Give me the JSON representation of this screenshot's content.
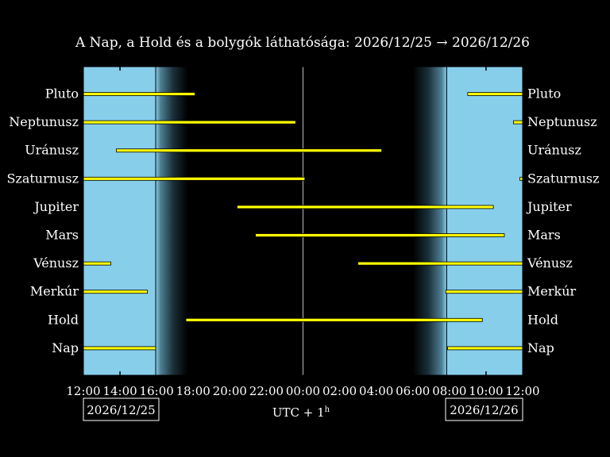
{
  "chart_data": {
    "type": "bar",
    "title": "A Nap, a Hold és a bolygók láthatósága: 2026/12/25 → 2026/12/26",
    "xlabel": "UTC + 1",
    "xlabel_sup": "h",
    "date_left": "2026/12/25",
    "date_right": "2026/12/26",
    "x_ticks": [
      "12:00",
      "14:00",
      "16:00",
      "18:00",
      "20:00",
      "22:00",
      "00:00",
      "02:00",
      "04:00",
      "06:00",
      "08:00",
      "10:00",
      "12:00"
    ],
    "x_range_hours": [
      12,
      36
    ],
    "sunset_hour": 15.95,
    "sunrise_hour": 31.85,
    "civil_dusk_end_hour": 17.7,
    "civil_dawn_start_hour": 30.0,
    "midnight_hour": 24.0,
    "bodies": [
      {
        "name": "Pluto",
        "segments": [
          [
            12.0,
            18.1
          ],
          [
            33.0,
            36.0
          ]
        ]
      },
      {
        "name": "Neptunusz",
        "segments": [
          [
            12.0,
            23.6
          ],
          [
            35.5,
            36.0
          ]
        ]
      },
      {
        "name": "Uránusz",
        "segments": [
          [
            13.8,
            28.3
          ]
        ]
      },
      {
        "name": "Szaturnusz",
        "segments": [
          [
            12.0,
            24.1
          ],
          [
            35.85,
            36.0
          ]
        ]
      },
      {
        "name": "Jupiter",
        "segments": [
          [
            20.4,
            34.4
          ]
        ]
      },
      {
        "name": "Mars",
        "segments": [
          [
            21.4,
            35.0
          ]
        ]
      },
      {
        "name": "Vénusz",
        "segments": [
          [
            12.0,
            13.5
          ],
          [
            27.0,
            36.0
          ]
        ]
      },
      {
        "name": "Merkúr",
        "segments": [
          [
            12.0,
            15.5
          ],
          [
            31.8,
            36.0
          ]
        ]
      },
      {
        "name": "Hold",
        "segments": [
          [
            17.6,
            33.8
          ]
        ]
      },
      {
        "name": "Nap",
        "segments": [
          [
            12.0,
            15.95
          ],
          [
            31.9,
            36.0
          ]
        ]
      }
    ],
    "colors": {
      "background": "#000000",
      "daylight": "#87ceeb",
      "visibility_bar": "#ffff00",
      "bar_edge": "#000000",
      "frame": "#ffffff"
    }
  }
}
